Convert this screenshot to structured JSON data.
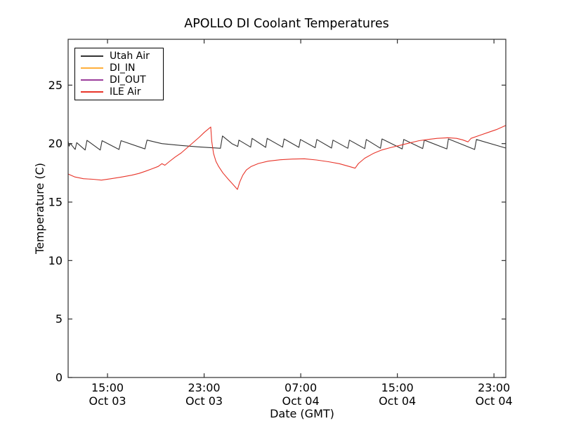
{
  "chart_data": {
    "type": "line",
    "title": "APOLLO DI Coolant Temperatures",
    "xlabel": "Date (GMT)",
    "ylabel": "Temperature (C)",
    "grid": false,
    "legend_position": "upper-left",
    "x_unit": "hours since Oct 03 00:00 GMT",
    "xlim": [
      11.74,
      47.98
    ],
    "ylim": [
      0,
      28.92
    ],
    "y_ticks": [
      0,
      5,
      10,
      15,
      20,
      25
    ],
    "x_ticks": [
      {
        "t": 15,
        "time": "15:00",
        "date": "Oct 03"
      },
      {
        "t": 23,
        "time": "23:00",
        "date": "Oct 03"
      },
      {
        "t": 31,
        "time": "07:00",
        "date": "Oct 04"
      },
      {
        "t": 39,
        "time": "15:00",
        "date": "Oct 04"
      },
      {
        "t": 47,
        "time": "23:00",
        "date": "Oct 04"
      }
    ],
    "series": [
      {
        "name": "Utah Air",
        "color": "#333333",
        "points": [
          [
            11.74,
            20.2
          ],
          [
            11.82,
            19.78
          ],
          [
            11.92,
            20.02
          ],
          [
            12.05,
            19.85
          ],
          [
            12.32,
            19.5
          ],
          [
            12.45,
            20.08
          ],
          [
            13.15,
            19.45
          ],
          [
            13.3,
            20.28
          ],
          [
            14.4,
            19.45
          ],
          [
            14.55,
            20.25
          ],
          [
            15.95,
            19.5
          ],
          [
            16.12,
            20.25
          ],
          [
            18.1,
            19.55
          ],
          [
            18.27,
            20.3
          ],
          [
            19.5,
            20.0
          ],
          [
            21.0,
            19.85
          ],
          [
            22.5,
            19.72
          ],
          [
            24.35,
            19.6
          ],
          [
            24.52,
            20.65
          ],
          [
            25.3,
            20.0
          ],
          [
            25.78,
            19.75
          ],
          [
            25.88,
            20.3
          ],
          [
            26.85,
            19.7
          ],
          [
            26.97,
            20.45
          ],
          [
            28.1,
            19.68
          ],
          [
            28.22,
            20.45
          ],
          [
            29.5,
            19.7
          ],
          [
            29.62,
            20.4
          ],
          [
            30.85,
            19.68
          ],
          [
            30.97,
            20.35
          ],
          [
            32.2,
            19.65
          ],
          [
            32.33,
            20.35
          ],
          [
            33.55,
            19.62
          ],
          [
            33.67,
            20.3
          ],
          [
            34.9,
            19.6
          ],
          [
            35.03,
            20.3
          ],
          [
            36.3,
            19.57
          ],
          [
            36.43,
            20.35
          ],
          [
            37.6,
            19.6
          ],
          [
            37.73,
            20.4
          ],
          [
            39.4,
            19.55
          ],
          [
            39.53,
            20.35
          ],
          [
            41.1,
            19.58
          ],
          [
            41.23,
            20.3
          ],
          [
            43.1,
            19.55
          ],
          [
            43.23,
            20.4
          ],
          [
            45.4,
            19.5
          ],
          [
            45.55,
            20.35
          ],
          [
            47.98,
            19.62
          ]
        ]
      },
      {
        "name": "DI_IN",
        "color": "#ffaf3c",
        "points": []
      },
      {
        "name": "DI_OUT",
        "color": "#9b3d9b",
        "points": []
      },
      {
        "name": "ILE Air",
        "color": "#e8352a",
        "points": [
          [
            11.74,
            17.4
          ],
          [
            12.3,
            17.15
          ],
          [
            13.0,
            17.0
          ],
          [
            13.8,
            16.95
          ],
          [
            14.5,
            16.88
          ],
          [
            15.3,
            17.0
          ],
          [
            16.2,
            17.15
          ],
          [
            17.0,
            17.3
          ],
          [
            17.6,
            17.45
          ],
          [
            18.1,
            17.62
          ],
          [
            18.7,
            17.85
          ],
          [
            19.2,
            18.05
          ],
          [
            19.5,
            18.28
          ],
          [
            19.75,
            18.15
          ],
          [
            20.1,
            18.45
          ],
          [
            20.6,
            18.85
          ],
          [
            21.1,
            19.2
          ],
          [
            21.6,
            19.65
          ],
          [
            22.1,
            20.1
          ],
          [
            22.6,
            20.55
          ],
          [
            23.0,
            20.95
          ],
          [
            23.35,
            21.25
          ],
          [
            23.55,
            21.42
          ],
          [
            23.63,
            20.2
          ],
          [
            23.78,
            19.15
          ],
          [
            23.98,
            18.48
          ],
          [
            24.2,
            18.05
          ],
          [
            24.55,
            17.5
          ],
          [
            25.0,
            16.95
          ],
          [
            25.4,
            16.5
          ],
          [
            25.76,
            16.08
          ],
          [
            25.95,
            16.72
          ],
          [
            26.2,
            17.3
          ],
          [
            26.5,
            17.75
          ],
          [
            26.9,
            18.05
          ],
          [
            27.5,
            18.3
          ],
          [
            28.3,
            18.5
          ],
          [
            29.3,
            18.62
          ],
          [
            30.3,
            18.68
          ],
          [
            31.3,
            18.7
          ],
          [
            32.3,
            18.6
          ],
          [
            33.3,
            18.45
          ],
          [
            34.2,
            18.28
          ],
          [
            34.9,
            18.08
          ],
          [
            35.5,
            17.9
          ],
          [
            35.78,
            18.3
          ],
          [
            36.3,
            18.75
          ],
          [
            37.0,
            19.15
          ],
          [
            37.7,
            19.45
          ],
          [
            38.4,
            19.65
          ],
          [
            39.2,
            19.85
          ],
          [
            40.0,
            20.05
          ],
          [
            40.8,
            20.25
          ],
          [
            41.5,
            20.35
          ],
          [
            42.3,
            20.45
          ],
          [
            43.2,
            20.5
          ],
          [
            43.9,
            20.45
          ],
          [
            44.4,
            20.32
          ],
          [
            44.85,
            20.15
          ],
          [
            45.1,
            20.45
          ],
          [
            45.8,
            20.7
          ],
          [
            46.5,
            20.95
          ],
          [
            47.2,
            21.2
          ],
          [
            47.98,
            21.55
          ]
        ]
      }
    ]
  }
}
